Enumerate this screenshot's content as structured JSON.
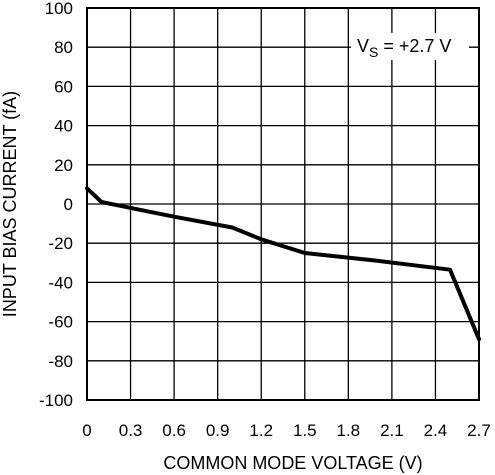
{
  "chart_data": {
    "type": "line",
    "xlabel": "COMMON MODE VOLTAGE (V)",
    "ylabel": "INPUT BIAS CURRENT (fA)",
    "xlim": [
      0,
      2.7
    ],
    "ylim": [
      -100,
      100
    ],
    "x_ticks": [
      "0",
      "0.3",
      "0.6",
      "0.9",
      "1.2",
      "1.5",
      "1.8",
      "2.1",
      "2.4",
      "2.7"
    ],
    "y_ticks": [
      "100",
      "80",
      "60",
      "40",
      "20",
      "0",
      "-20",
      "-40",
      "-60",
      "-80",
      "-100"
    ],
    "grid": true,
    "annotation": {
      "prefix": "V",
      "subscript": "S",
      "suffix": " = +2.7 V"
    },
    "series": [
      {
        "x": [
          0,
          0.1,
          0.3,
          0.6,
          1.0,
          1.2,
          1.5,
          2.0,
          2.5,
          2.7
        ],
        "y": [
          8,
          1,
          -2,
          -6.5,
          -12,
          -18,
          -25,
          -29,
          -33.5,
          -69
        ]
      }
    ]
  }
}
